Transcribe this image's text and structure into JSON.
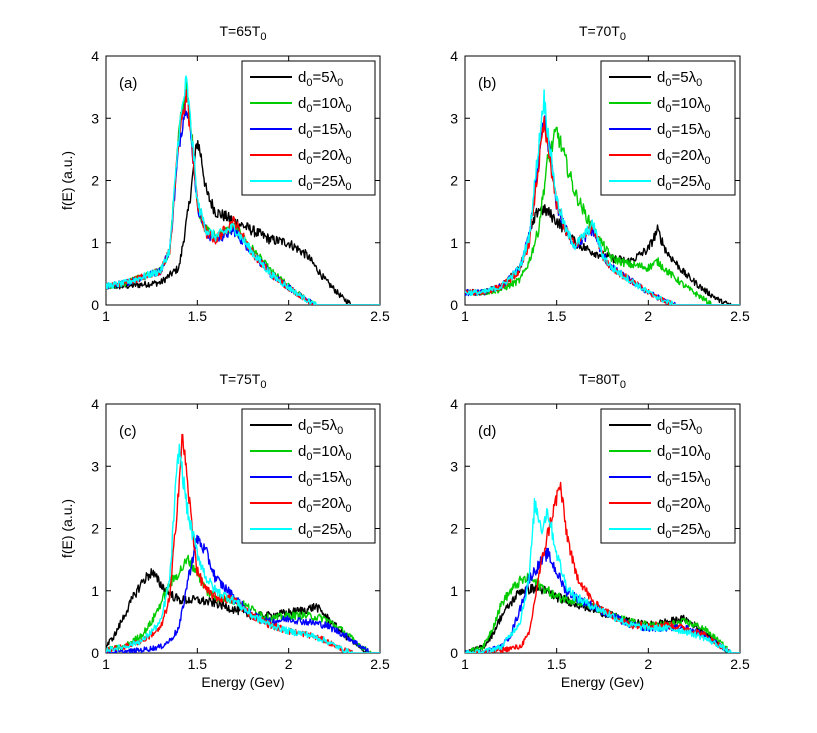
{
  "chart_data": [
    {
      "type": "line",
      "panel_label": "(a)",
      "title": {
        "main": "T=65T",
        "sub": "0"
      },
      "xlabel": "",
      "ylabel": "f(E) (a.u.)",
      "xlim": [
        1,
        2.5
      ],
      "ylim": [
        0,
        4
      ],
      "xticks": [
        "1",
        "1.5",
        "2",
        "2.5"
      ],
      "yticks": [
        "0",
        "1",
        "2",
        "3",
        "4"
      ],
      "legend_position": "top-right",
      "series": [
        {
          "name": "d0=5λ0",
          "color": "#000000",
          "x": [
            1,
            1.1,
            1.2,
            1.3,
            1.4,
            1.45,
            1.5,
            1.52,
            1.55,
            1.6,
            1.7,
            1.8,
            1.9,
            2,
            2.05,
            2.1,
            2.2,
            2.3,
            2.35
          ],
          "y": [
            0.3,
            0.3,
            0.33,
            0.36,
            0.6,
            1.5,
            2.65,
            2.4,
            1.8,
            1.5,
            1.35,
            1.2,
            1.05,
            1.0,
            0.9,
            0.8,
            0.4,
            0.1,
            0
          ]
        },
        {
          "name": "d0=10λ0",
          "color": "#00cc00",
          "x": [
            1,
            1.1,
            1.2,
            1.3,
            1.35,
            1.4,
            1.44,
            1.48,
            1.5,
            1.55,
            1.6,
            1.7,
            1.8,
            1.9,
            2,
            2.1,
            2.15
          ],
          "y": [
            0.3,
            0.35,
            0.45,
            0.55,
            0.9,
            2.8,
            3.5,
            2.4,
            1.6,
            1.2,
            1.1,
            1.25,
            0.9,
            0.55,
            0.3,
            0.08,
            0
          ]
        },
        {
          "name": "d0=15λ0",
          "color": "#0000ff",
          "x": [
            1,
            1.1,
            1.2,
            1.3,
            1.35,
            1.4,
            1.44,
            1.48,
            1.5,
            1.55,
            1.6,
            1.7,
            1.8,
            1.9,
            2,
            2.1,
            2.15
          ],
          "y": [
            0.3,
            0.35,
            0.45,
            0.55,
            0.9,
            2.6,
            3.3,
            2.3,
            1.6,
            1.15,
            1.05,
            1.2,
            0.85,
            0.5,
            0.28,
            0.08,
            0
          ]
        },
        {
          "name": "d0=20λ0",
          "color": "#ff0000",
          "x": [
            1,
            1.1,
            1.2,
            1.3,
            1.35,
            1.4,
            1.44,
            1.48,
            1.5,
            1.55,
            1.6,
            1.7,
            1.8,
            1.9,
            2,
            2.1,
            2.15
          ],
          "y": [
            0.3,
            0.35,
            0.45,
            0.55,
            0.9,
            2.7,
            3.4,
            2.3,
            1.6,
            1.15,
            1.05,
            1.35,
            0.85,
            0.5,
            0.28,
            0.08,
            0
          ]
        },
        {
          "name": "d0=25λ0",
          "color": "#00ffff",
          "x": [
            1,
            1.1,
            1.2,
            1.3,
            1.35,
            1.4,
            1.44,
            1.48,
            1.5,
            1.55,
            1.6,
            1.7,
            1.8,
            1.9,
            2,
            2.1,
            2.15
          ],
          "y": [
            0.3,
            0.35,
            0.45,
            0.55,
            0.9,
            2.8,
            3.6,
            2.4,
            1.65,
            1.2,
            1.1,
            1.25,
            0.85,
            0.5,
            0.28,
            0.08,
            0
          ]
        }
      ]
    },
    {
      "type": "line",
      "panel_label": "(b)",
      "title": {
        "main": "T=70T",
        "sub": "0"
      },
      "xlabel": "",
      "ylabel": "",
      "xlim": [
        1,
        2.5
      ],
      "ylim": [
        0,
        4
      ],
      "xticks": [
        "1",
        "1.5",
        "2",
        "2.5"
      ],
      "yticks": [
        "0",
        "1",
        "2",
        "3",
        "4"
      ],
      "legend_position": "top-right",
      "series": [
        {
          "name": "d0=5λ0",
          "color": "#000000",
          "x": [
            1,
            1.1,
            1.2,
            1.3,
            1.35,
            1.4,
            1.45,
            1.5,
            1.55,
            1.6,
            1.7,
            1.8,
            1.9,
            2,
            2.05,
            2.1,
            2.2,
            2.3,
            2.4,
            2.45
          ],
          "y": [
            0.2,
            0.2,
            0.3,
            0.6,
            1.1,
            1.55,
            1.5,
            1.35,
            1.2,
            1.0,
            0.85,
            0.75,
            0.7,
            0.9,
            1.2,
            0.85,
            0.5,
            0.25,
            0.05,
            0
          ]
        },
        {
          "name": "d0=10λ0",
          "color": "#00cc00",
          "x": [
            1,
            1.1,
            1.2,
            1.3,
            1.35,
            1.4,
            1.45,
            1.5,
            1.55,
            1.6,
            1.7,
            1.8,
            1.9,
            2,
            2.05,
            2.1,
            2.2,
            2.3,
            2.35
          ],
          "y": [
            0.2,
            0.2,
            0.25,
            0.4,
            0.7,
            1.2,
            2.3,
            2.8,
            2.3,
            1.8,
            1.2,
            0.75,
            0.65,
            0.6,
            0.7,
            0.55,
            0.3,
            0.1,
            0
          ]
        },
        {
          "name": "d0=15λ0",
          "color": "#0000ff",
          "x": [
            1,
            1.1,
            1.2,
            1.3,
            1.35,
            1.4,
            1.43,
            1.46,
            1.5,
            1.55,
            1.6,
            1.7,
            1.75,
            1.8,
            1.9,
            2,
            2.1,
            2.15
          ],
          "y": [
            0.2,
            0.2,
            0.3,
            0.6,
            1.1,
            2.2,
            3.0,
            2.5,
            1.6,
            1.2,
            0.95,
            1.2,
            0.8,
            0.6,
            0.4,
            0.2,
            0.05,
            0
          ]
        },
        {
          "name": "d0=20λ0",
          "color": "#ff0000",
          "x": [
            1,
            1.1,
            1.2,
            1.3,
            1.35,
            1.4,
            1.43,
            1.46,
            1.5,
            1.55,
            1.6,
            1.7,
            1.75,
            1.8,
            1.9,
            2,
            2.1,
            2.15
          ],
          "y": [
            0.2,
            0.2,
            0.3,
            0.55,
            1.0,
            2.2,
            2.9,
            2.4,
            1.6,
            1.2,
            0.95,
            1.3,
            0.8,
            0.6,
            0.4,
            0.2,
            0.05,
            0
          ]
        },
        {
          "name": "d0=25λ0",
          "color": "#00ffff",
          "x": [
            1,
            1.1,
            1.2,
            1.3,
            1.35,
            1.4,
            1.43,
            1.46,
            1.5,
            1.55,
            1.6,
            1.7,
            1.75,
            1.8,
            1.9,
            2,
            2.1,
            2.15
          ],
          "y": [
            0.2,
            0.2,
            0.3,
            0.6,
            1.1,
            2.5,
            3.35,
            2.6,
            1.7,
            1.2,
            0.95,
            1.3,
            0.8,
            0.6,
            0.4,
            0.2,
            0.05,
            0
          ]
        }
      ]
    },
    {
      "type": "line",
      "panel_label": "(c)",
      "title": {
        "main": "T=75T",
        "sub": "0"
      },
      "xlabel": "Energy (Gev)",
      "ylabel": "f(E) (a.u.)",
      "xlim": [
        1,
        2.5
      ],
      "ylim": [
        0,
        4
      ],
      "xticks": [
        "1",
        "1.5",
        "2",
        "2.5"
      ],
      "yticks": [
        "0",
        "1",
        "2",
        "3",
        "4"
      ],
      "legend_position": "top-right",
      "series": [
        {
          "name": "d0=5λ0",
          "color": "#000000",
          "x": [
            1,
            1.05,
            1.1,
            1.15,
            1.2,
            1.25,
            1.3,
            1.35,
            1.4,
            1.5,
            1.6,
            1.7,
            1.8,
            1.9,
            2,
            2.1,
            2.15,
            2.2,
            2.3,
            2.4,
            2.45
          ],
          "y": [
            0.1,
            0.3,
            0.6,
            0.9,
            1.15,
            1.3,
            1.1,
            0.95,
            0.85,
            0.85,
            0.8,
            0.7,
            0.6,
            0.6,
            0.65,
            0.7,
            0.75,
            0.6,
            0.3,
            0.05,
            0
          ]
        },
        {
          "name": "d0=10λ0",
          "color": "#00cc00",
          "x": [
            1,
            1.1,
            1.2,
            1.25,
            1.3,
            1.35,
            1.4,
            1.45,
            1.5,
            1.55,
            1.6,
            1.7,
            1.8,
            1.9,
            2,
            2.1,
            2.2,
            2.3,
            2.4,
            2.45
          ],
          "y": [
            0.05,
            0.1,
            0.3,
            0.5,
            0.8,
            1.1,
            1.3,
            1.5,
            1.3,
            1.0,
            0.9,
            0.85,
            0.7,
            0.55,
            0.6,
            0.6,
            0.55,
            0.35,
            0.1,
            0
          ]
        },
        {
          "name": "d0=15λ0",
          "color": "#0000ff",
          "x": [
            1,
            1.1,
            1.2,
            1.3,
            1.35,
            1.4,
            1.45,
            1.5,
            1.55,
            1.6,
            1.7,
            1.8,
            1.9,
            2,
            2.1,
            2.2,
            2.3,
            2.4,
            2.45
          ],
          "y": [
            0,
            0.02,
            0.05,
            0.1,
            0.2,
            0.4,
            1.2,
            1.85,
            1.6,
            1.2,
            0.9,
            0.6,
            0.5,
            0.55,
            0.5,
            0.45,
            0.3,
            0.1,
            0
          ]
        },
        {
          "name": "d0=20λ0",
          "color": "#ff0000",
          "x": [
            1,
            1.1,
            1.2,
            1.3,
            1.35,
            1.38,
            1.42,
            1.45,
            1.5,
            1.55,
            1.6,
            1.7,
            1.8,
            1.9,
            2,
            2.1,
            2.2,
            2.3,
            2.35
          ],
          "y": [
            0.05,
            0.1,
            0.2,
            0.4,
            0.9,
            2.0,
            3.5,
            2.6,
            1.3,
            1.0,
            0.9,
            0.85,
            0.6,
            0.45,
            0.35,
            0.3,
            0.2,
            0.05,
            0
          ]
        },
        {
          "name": "d0=25λ0",
          "color": "#00ffff",
          "x": [
            1,
            1.1,
            1.2,
            1.3,
            1.35,
            1.38,
            1.4,
            1.45,
            1.5,
            1.55,
            1.6,
            1.7,
            1.8,
            1.9,
            2,
            2.1,
            2.2,
            2.3,
            2.35
          ],
          "y": [
            0.05,
            0.1,
            0.2,
            0.5,
            1.2,
            2.6,
            3.3,
            2.2,
            1.6,
            1.2,
            1.0,
            0.85,
            0.6,
            0.45,
            0.35,
            0.3,
            0.2,
            0.05,
            0
          ]
        }
      ]
    },
    {
      "type": "line",
      "panel_label": "(d)",
      "title": {
        "main": "T=80T",
        "sub": "0"
      },
      "xlabel": "Energy (Gev)",
      "ylabel": "",
      "xlim": [
        1,
        2.5
      ],
      "ylim": [
        0,
        4
      ],
      "xticks": [
        "1",
        "1.5",
        "2",
        "2.5"
      ],
      "yticks": [
        "0",
        "1",
        "2",
        "3",
        "4"
      ],
      "legend_position": "top-right",
      "series": [
        {
          "name": "d0=5λ0",
          "color": "#000000",
          "x": [
            1,
            1.1,
            1.15,
            1.2,
            1.3,
            1.4,
            1.5,
            1.6,
            1.7,
            1.8,
            1.9,
            2,
            2.1,
            2.2,
            2.3,
            2.4,
            2.45
          ],
          "y": [
            0,
            0.1,
            0.3,
            0.6,
            1.0,
            1.05,
            0.9,
            0.8,
            0.7,
            0.6,
            0.5,
            0.45,
            0.5,
            0.55,
            0.35,
            0.1,
            0
          ]
        },
        {
          "name": "d0=10λ0",
          "color": "#00cc00",
          "x": [
            1,
            1.1,
            1.15,
            1.2,
            1.25,
            1.3,
            1.35,
            1.4,
            1.45,
            1.5,
            1.6,
            1.7,
            1.8,
            1.9,
            2,
            2.1,
            2.2,
            2.3,
            2.4,
            2.45
          ],
          "y": [
            0,
            0.1,
            0.4,
            0.8,
            1.0,
            1.15,
            1.2,
            1.1,
            1.0,
            0.9,
            0.85,
            0.75,
            0.6,
            0.5,
            0.45,
            0.45,
            0.5,
            0.4,
            0.15,
            0
          ]
        },
        {
          "name": "d0=15λ0",
          "color": "#0000ff",
          "x": [
            1,
            1.1,
            1.2,
            1.25,
            1.3,
            1.35,
            1.4,
            1.45,
            1.5,
            1.55,
            1.6,
            1.7,
            1.8,
            1.9,
            2,
            2.1,
            2.2,
            2.3,
            2.4,
            2.45
          ],
          "y": [
            0,
            0.02,
            0.1,
            0.3,
            0.7,
            1.2,
            1.4,
            1.6,
            1.3,
            1.0,
            0.9,
            0.75,
            0.6,
            0.45,
            0.4,
            0.4,
            0.4,
            0.3,
            0.1,
            0
          ]
        },
        {
          "name": "d0=20λ0",
          "color": "#ff0000",
          "x": [
            1,
            1.1,
            1.2,
            1.3,
            1.35,
            1.4,
            1.45,
            1.5,
            1.52,
            1.55,
            1.6,
            1.7,
            1.8,
            1.9,
            2,
            2.1,
            2.2,
            2.3,
            2.4,
            2.45
          ],
          "y": [
            0,
            0.02,
            0.05,
            0.1,
            0.3,
            1.2,
            1.9,
            2.5,
            2.7,
            2.0,
            1.3,
            0.8,
            0.6,
            0.45,
            0.45,
            0.45,
            0.4,
            0.3,
            0.1,
            0
          ]
        },
        {
          "name": "d0=25λ0",
          "color": "#00ffff",
          "x": [
            1,
            1.1,
            1.2,
            1.3,
            1.35,
            1.38,
            1.42,
            1.45,
            1.5,
            1.55,
            1.6,
            1.7,
            1.8,
            1.9,
            2,
            2.1,
            2.2,
            2.3,
            2.4,
            2.45
          ],
          "y": [
            0,
            0.02,
            0.1,
            0.5,
            1.2,
            2.4,
            2.0,
            2.3,
            1.6,
            1.1,
            0.9,
            0.75,
            0.6,
            0.45,
            0.4,
            0.4,
            0.35,
            0.25,
            0.1,
            0
          ]
        }
      ]
    }
  ]
}
